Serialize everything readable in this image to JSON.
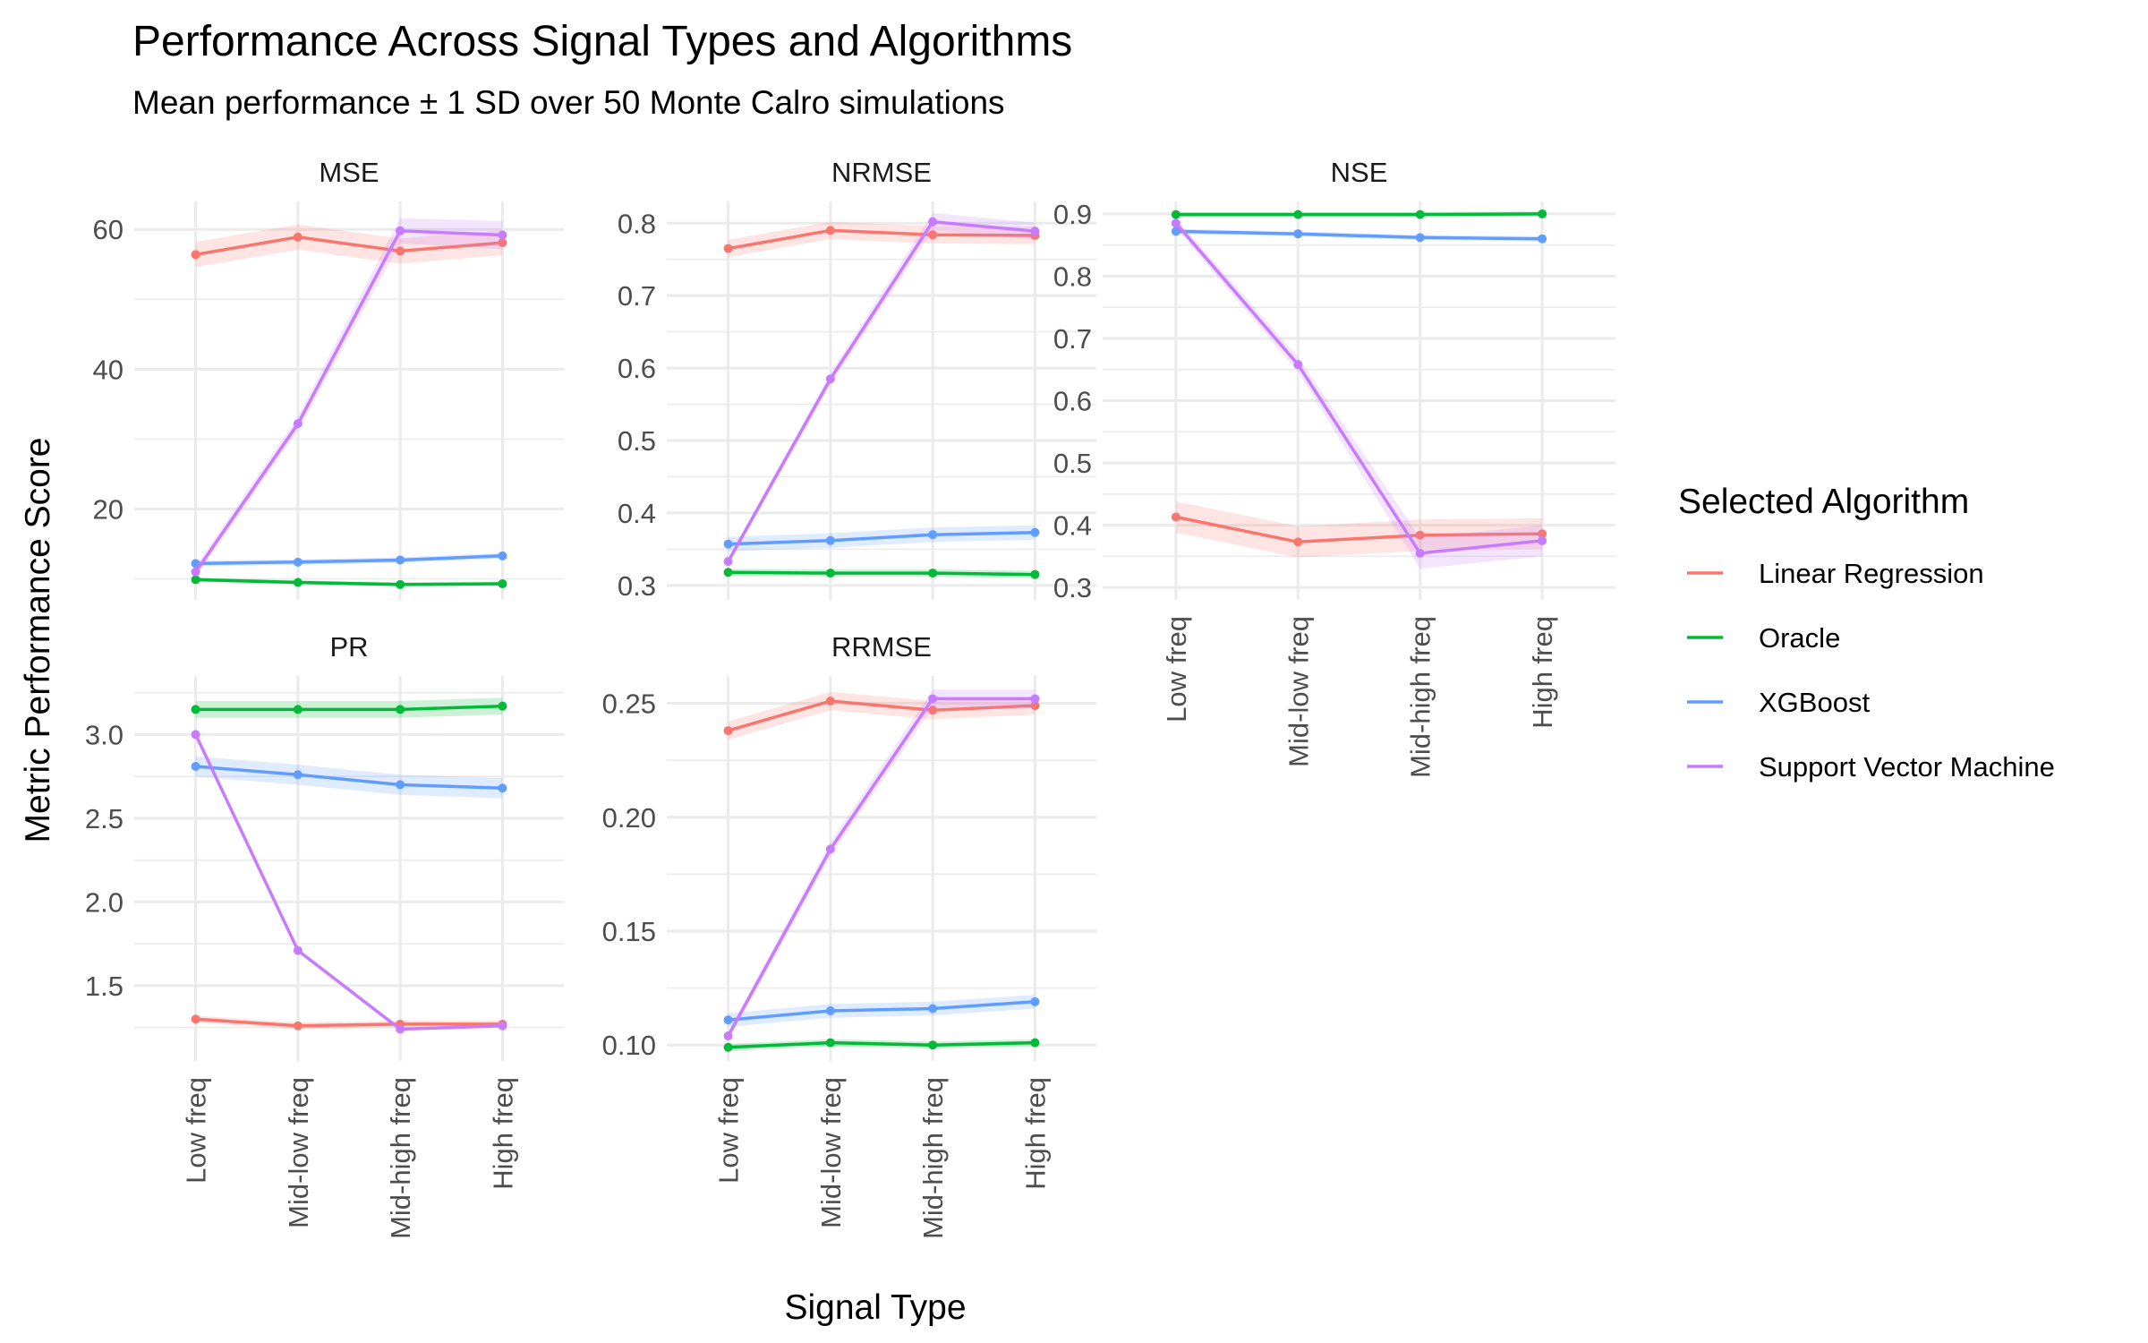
{
  "chart_data": {
    "type": "line",
    "title": "Performance Across Signal Types and Algorithms",
    "subtitle": "Mean performance ± 1 SD over 50 Monte Calro simulations",
    "xlabel": "Signal Type",
    "ylabel": "Metric Performance Score",
    "categories": [
      "Low freq",
      "Mid-low freq",
      "Mid-high freq",
      "High freq"
    ],
    "legend": {
      "title": "Selected Algorithm",
      "position": "right",
      "entries": [
        {
          "name": "Linear Regression",
          "color": "#F8766D"
        },
        {
          "name": "Oracle",
          "color": "#00BA38"
        },
        {
          "name": "XGBoost",
          "color": "#619CFF"
        },
        {
          "name": "Support Vector Machine",
          "color": "#C77CFF"
        }
      ]
    },
    "grid": true,
    "panels": [
      {
        "name": "MSE",
        "ylim": [
          7,
          64
        ],
        "yticks": [
          20,
          40,
          60
        ],
        "ytick_labels": [
          "20",
          "40",
          "60"
        ],
        "show_x_labels": false,
        "series": [
          {
            "name": "Linear Regression",
            "values": [
              56.4,
              58.9,
              56.9,
              58.1
            ],
            "sd": [
              1.8,
              1.8,
              1.8,
              1.8
            ]
          },
          {
            "name": "Oracle",
            "values": [
              9.9,
              9.5,
              9.2,
              9.3
            ],
            "sd": [
              0.3,
              0.3,
              0.3,
              0.3
            ]
          },
          {
            "name": "XGBoost",
            "values": [
              12.2,
              12.4,
              12.7,
              13.3
            ],
            "sd": [
              0.4,
              0.4,
              0.4,
              0.4
            ]
          },
          {
            "name": "Support Vector Machine",
            "values": [
              11.0,
              32.2,
              59.8,
              59.2
            ],
            "sd": [
              0.8,
              1.0,
              1.8,
              2.0
            ]
          }
        ]
      },
      {
        "name": "NRMSE",
        "ylim": [
          0.28,
          0.83
        ],
        "yticks": [
          0.3,
          0.4,
          0.5,
          0.6,
          0.7,
          0.8
        ],
        "ytick_labels": [
          "0.3",
          "0.4",
          "0.5",
          "0.6",
          "0.7",
          "0.8"
        ],
        "show_x_labels": false,
        "series": [
          {
            "name": "Linear Regression",
            "values": [
              0.765,
              0.79,
              0.784,
              0.783
            ],
            "sd": [
              0.012,
              0.012,
              0.012,
              0.012
            ]
          },
          {
            "name": "Oracle",
            "values": [
              0.318,
              0.317,
              0.317,
              0.315
            ],
            "sd": [
              0.005,
              0.005,
              0.005,
              0.005
            ]
          },
          {
            "name": "XGBoost",
            "values": [
              0.357,
              0.362,
              0.37,
              0.373
            ],
            "sd": [
              0.01,
              0.01,
              0.01,
              0.01
            ]
          },
          {
            "name": "Support Vector Machine",
            "values": [
              0.333,
              0.585,
              0.802,
              0.789
            ],
            "sd": [
              0.005,
              0.008,
              0.012,
              0.012
            ]
          }
        ]
      },
      {
        "name": "NSE",
        "ylim": [
          0.28,
          0.92
        ],
        "yticks": [
          0.3,
          0.4,
          0.5,
          0.6,
          0.7,
          0.8,
          0.9
        ],
        "ytick_labels": [
          "0.3",
          "0.4",
          "0.5",
          "0.6",
          "0.7",
          "0.8",
          "0.9"
        ],
        "show_x_labels": true,
        "series": [
          {
            "name": "Linear Regression",
            "values": [
              0.413,
              0.373,
              0.384,
              0.386
            ],
            "sd": [
              0.025,
              0.025,
              0.025,
              0.025
            ]
          },
          {
            "name": "Oracle",
            "values": [
              0.899,
              0.899,
              0.899,
              0.9
            ],
            "sd": [
              0.004,
              0.004,
              0.004,
              0.004
            ]
          },
          {
            "name": "XGBoost",
            "values": [
              0.872,
              0.868,
              0.862,
              0.86
            ],
            "sd": [
              0.004,
              0.004,
              0.004,
              0.004
            ]
          },
          {
            "name": "Support Vector Machine",
            "values": [
              0.885,
              0.658,
              0.355,
              0.375
            ],
            "sd": [
              0.008,
              0.012,
              0.025,
              0.025
            ]
          }
        ]
      },
      {
        "name": "PR",
        "ylim": [
          1.05,
          3.35
        ],
        "yticks": [
          1.5,
          2.0,
          2.5,
          3.0
        ],
        "ytick_labels": [
          "1.5",
          "2.0",
          "2.5",
          "3.0"
        ],
        "show_x_labels": true,
        "series": [
          {
            "name": "Linear Regression",
            "values": [
              1.3,
              1.26,
              1.27,
              1.27
            ],
            "sd": [
              0.02,
              0.02,
              0.02,
              0.02
            ]
          },
          {
            "name": "Oracle",
            "values": [
              3.15,
              3.15,
              3.15,
              3.17
            ],
            "sd": [
              0.05,
              0.05,
              0.05,
              0.05
            ]
          },
          {
            "name": "XGBoost",
            "values": [
              2.81,
              2.76,
              2.7,
              2.68
            ],
            "sd": [
              0.06,
              0.06,
              0.06,
              0.06
            ]
          },
          {
            "name": "Support Vector Machine",
            "values": [
              3.0,
              1.71,
              1.24,
              1.26
            ],
            "sd": [
              0.01,
              0.01,
              0.01,
              0.01
            ]
          }
        ]
      },
      {
        "name": "RRMSE",
        "ylim": [
          0.093,
          0.262
        ],
        "yticks": [
          0.1,
          0.15,
          0.2,
          0.25
        ],
        "ytick_labels": [
          "0.10",
          "0.15",
          "0.20",
          "0.25"
        ],
        "show_x_labels": true,
        "series": [
          {
            "name": "Linear Regression",
            "values": [
              0.238,
              0.251,
              0.247,
              0.249
            ],
            "sd": [
              0.004,
              0.004,
              0.004,
              0.004
            ]
          },
          {
            "name": "Oracle",
            "values": [
              0.099,
              0.101,
              0.1,
              0.101
            ],
            "sd": [
              0.0015,
              0.0015,
              0.0015,
              0.0015
            ]
          },
          {
            "name": "XGBoost",
            "values": [
              0.111,
              0.115,
              0.116,
              0.119
            ],
            "sd": [
              0.003,
              0.003,
              0.003,
              0.003
            ]
          },
          {
            "name": "Support Vector Machine",
            "values": [
              0.104,
              0.186,
              0.252,
              0.252
            ],
            "sd": [
              0.002,
              0.003,
              0.004,
              0.004
            ]
          }
        ]
      }
    ]
  }
}
